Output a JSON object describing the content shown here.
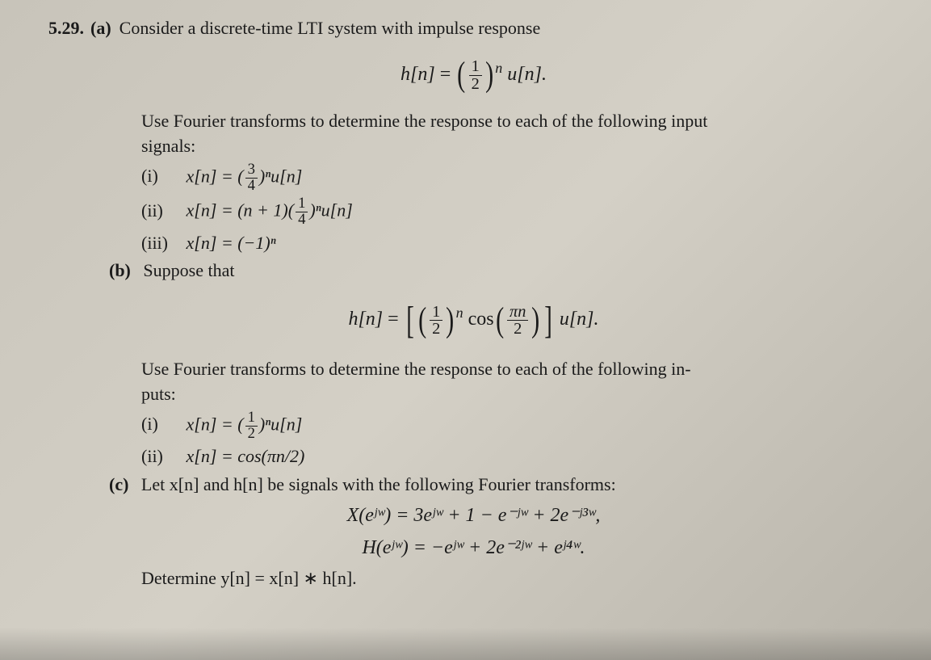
{
  "problem": {
    "number": "5.29.",
    "parts": {
      "a": {
        "label": "(a)",
        "intro": "Consider a discrete-time LTI system with impulse response",
        "equation_lhs": "h[n]",
        "equation_eq": "=",
        "equation_frac_num": "1",
        "equation_frac_den": "2",
        "equation_exp": "n",
        "equation_tail": "u[n].",
        "instruction_pre": "Use Fourier transforms to determine the response to each of the following input",
        "instruction_post": "signals:",
        "items": {
          "i": {
            "roman": "(i)",
            "text_pre": "x[n] = (",
            "frac_num": "3",
            "frac_den": "4",
            "text_post": ")ⁿu[n]"
          },
          "ii": {
            "roman": "(ii)",
            "text_pre": "x[n] = (n + 1)(",
            "frac_num": "1",
            "frac_den": "4",
            "text_post": ")ⁿu[n]"
          },
          "iii": {
            "roman": "(iii)",
            "text": "x[n] = (−1)ⁿ"
          }
        }
      },
      "b": {
        "label": "(b)",
        "intro": "Suppose that",
        "eq_lhs": "h[n]",
        "eq_eq": "=",
        "frac1_num": "1",
        "frac1_den": "2",
        "exp1": "n",
        "cos": "cos",
        "frac2_num": "πn",
        "frac2_den": "2",
        "tail": "u[n].",
        "instruction_pre": "Use Fourier transforms to determine the response to each of the following in-",
        "instruction_post": "puts:",
        "items": {
          "i": {
            "roman": "(i)",
            "text_pre": "x[n] = (",
            "frac_num": "1",
            "frac_den": "2",
            "text_post": ")ⁿu[n]"
          },
          "ii": {
            "roman": "(ii)",
            "text": "x[n] = cos(πn/2)"
          }
        }
      },
      "c": {
        "label": "(c)",
        "intro": "Let x[n] and h[n] be signals with the following Fourier transforms:",
        "eq1": "X(eʲʷ) = 3eʲʷ + 1 − e⁻ʲʷ + 2e⁻ʲ³ʷ,",
        "eq2": "H(eʲʷ) = −eʲʷ + 2e⁻²ʲʷ + eʲ⁴ʷ.",
        "final": "Determine y[n] = x[n] ∗ h[n]."
      }
    }
  },
  "style": {
    "background": "#cac6bc",
    "text_color": "#1a1a1a",
    "font_size_body": 22,
    "font_size_equation": 24
  }
}
